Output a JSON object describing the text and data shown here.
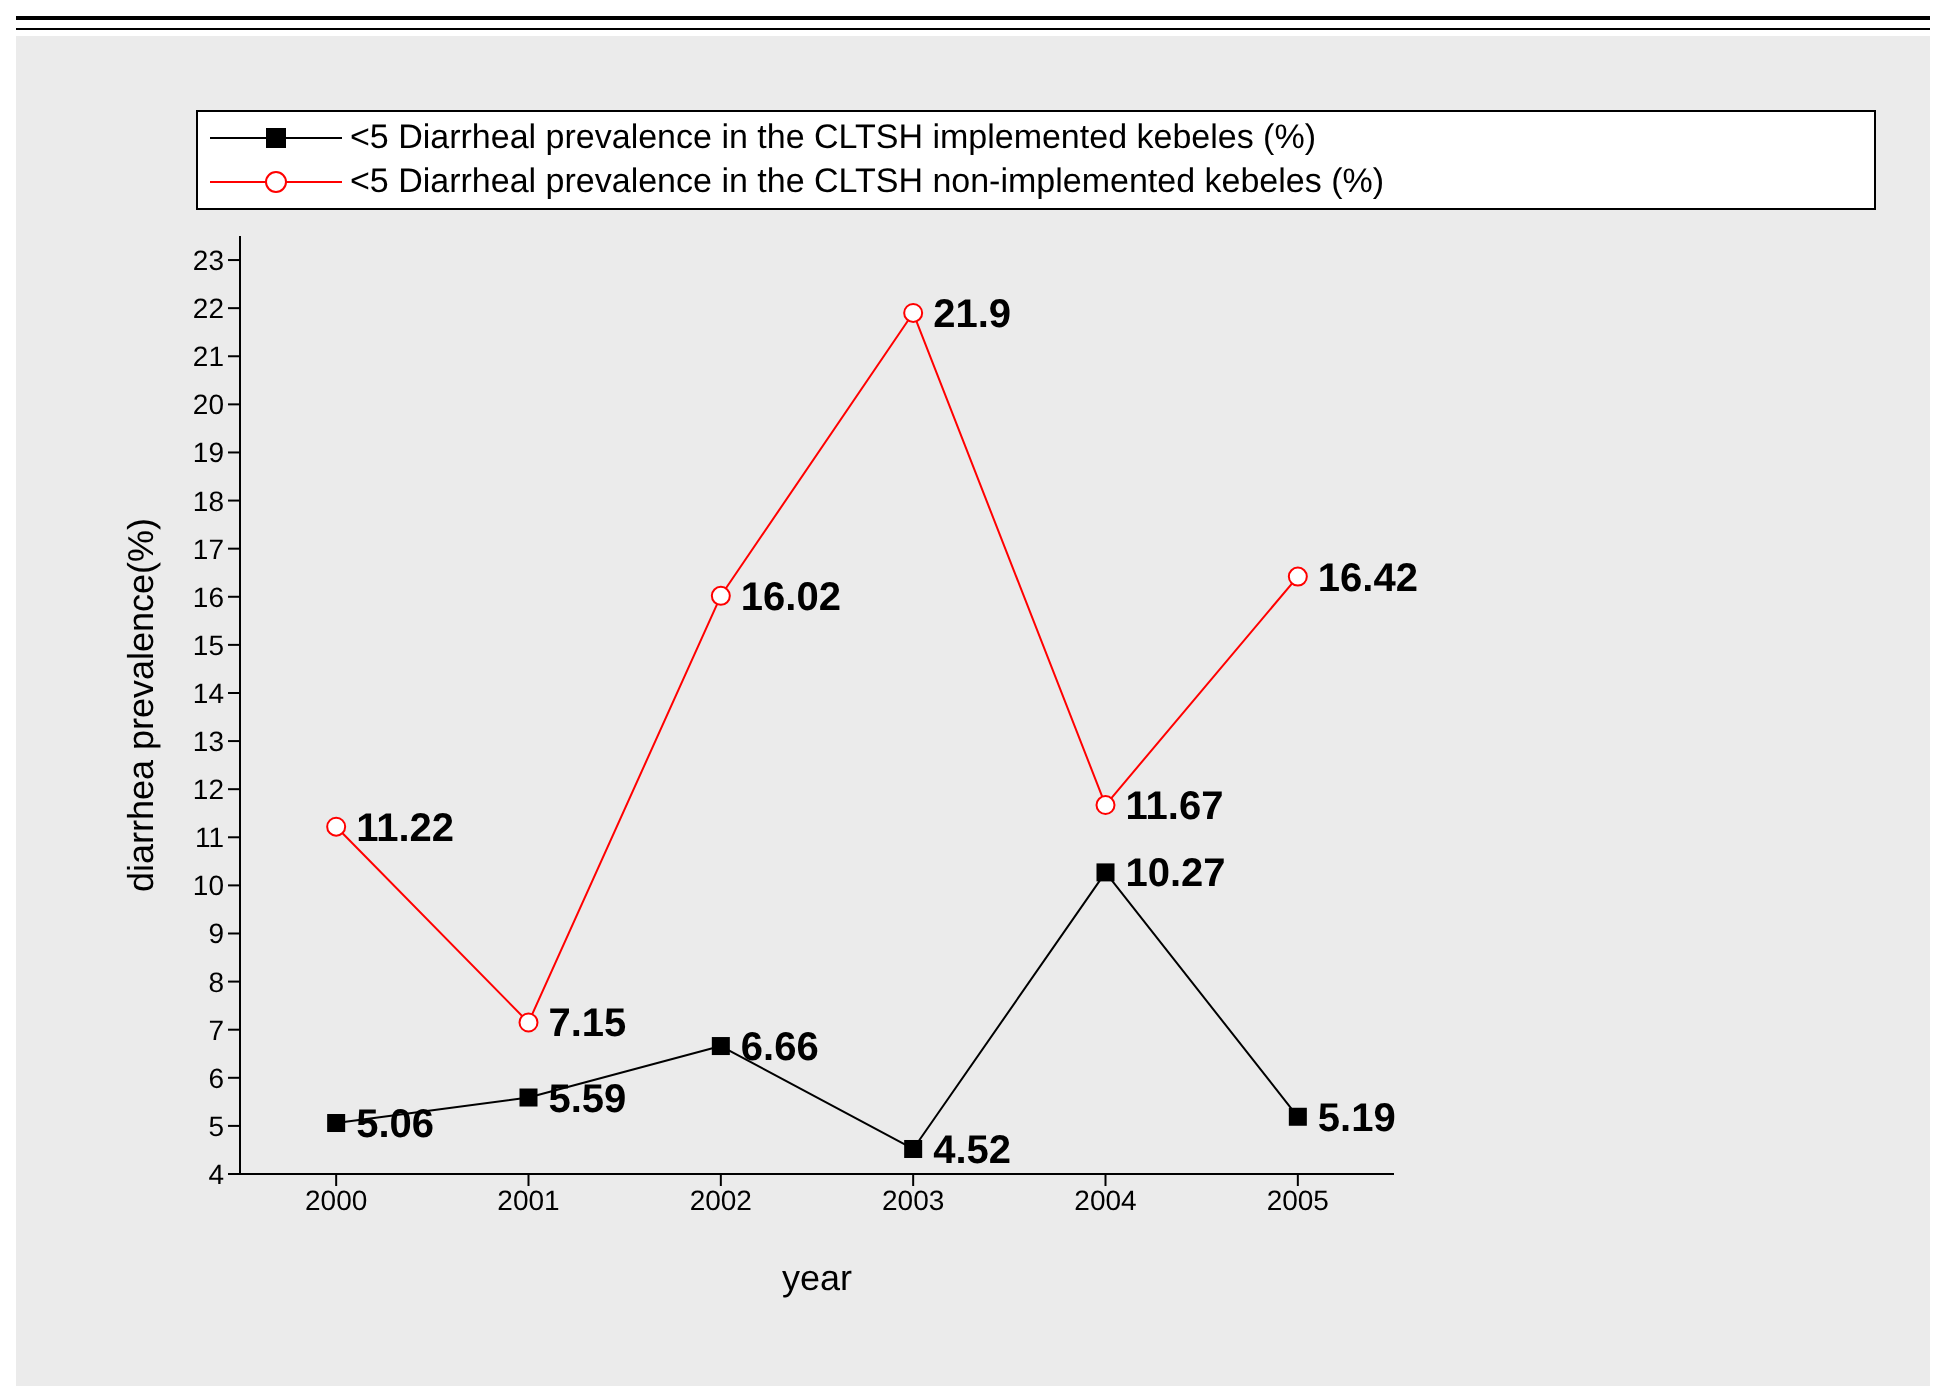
{
  "chart_data": {
    "type": "line",
    "xlabel": "year",
    "ylabel": "diarrhea prevalence(%)",
    "x": [
      2000,
      2001,
      2002,
      2003,
      2004,
      2005
    ],
    "xlim": [
      1999.5,
      2005.5
    ],
    "xticks": [
      2000,
      2001,
      2002,
      2003,
      2004,
      2005
    ],
    "ylim": [
      4,
      23.5
    ],
    "yticks": [
      4,
      5,
      6,
      7,
      8,
      9,
      10,
      11,
      12,
      13,
      14,
      15,
      16,
      17,
      18,
      19,
      20,
      21,
      22,
      23
    ],
    "series": [
      {
        "name": "<5 Diarrheal prevalence in the CLTSH implemented kebeles (%)",
        "color": "#000000",
        "marker": "square",
        "values": [
          5.06,
          5.59,
          6.66,
          4.52,
          10.27,
          5.19
        ]
      },
      {
        "name": "<5 Diarrheal prevalence in the CLTSH non-implemented kebeles (%)",
        "color": "#ff0000",
        "marker": "circle",
        "values": [
          11.22,
          7.15,
          16.02,
          21.9,
          11.67,
          16.42
        ]
      }
    ],
    "data_labels": true,
    "legend": "top",
    "grid": false
  }
}
